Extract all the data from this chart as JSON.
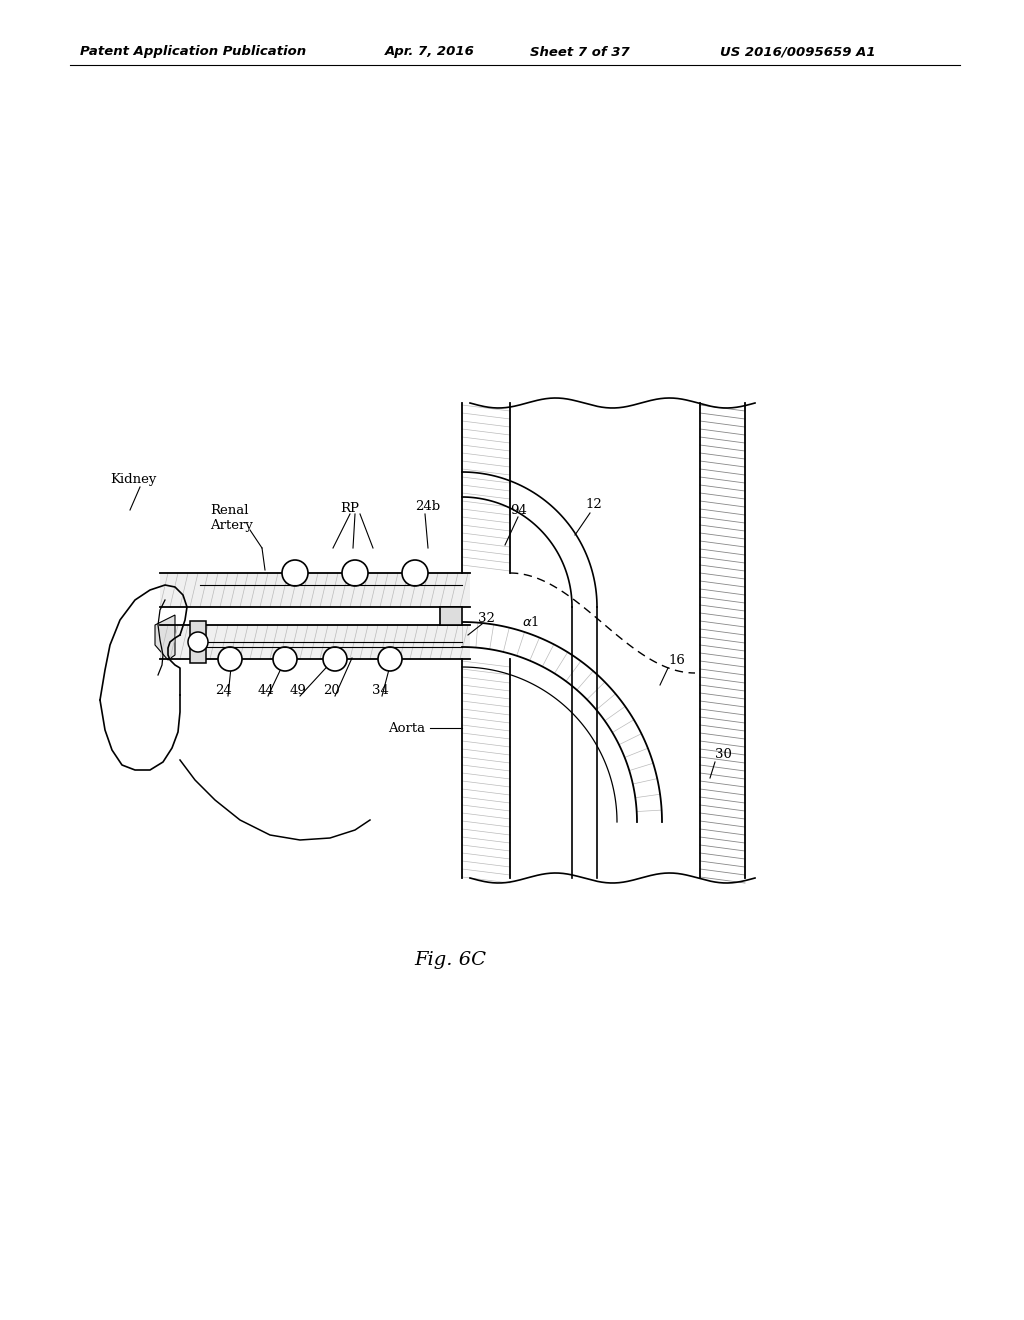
{
  "background_color": "#ffffff",
  "header_text": "Patent Application Publication",
  "header_date": "Apr. 7, 2016",
  "header_sheet": "Sheet 7 of 37",
  "header_patent": "US 2016/0095659 A1",
  "caption": "Fig. 6C"
}
